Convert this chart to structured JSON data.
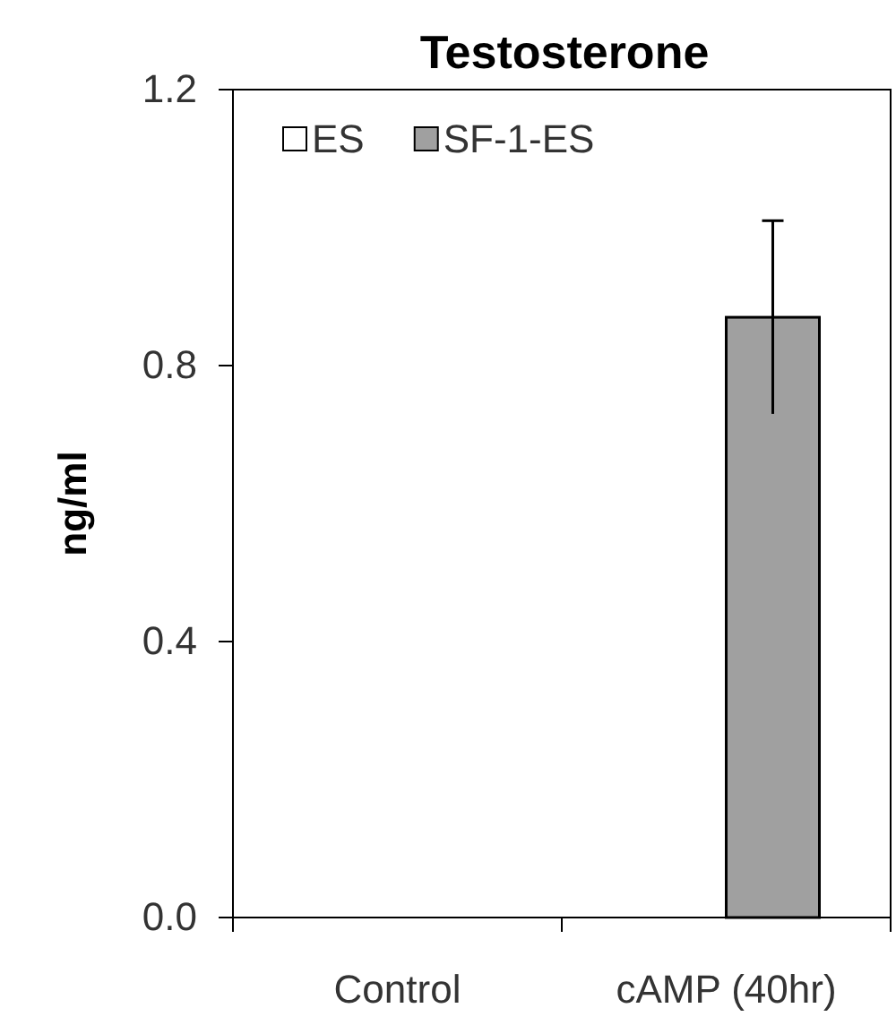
{
  "chart_data": {
    "type": "bar",
    "title": "Testosterone",
    "ylabel": "ng/ml",
    "categories": [
      "Control",
      "cAMP (40hr)"
    ],
    "series": [
      {
        "name": "ES",
        "color": "#ffffff",
        "values": [
          null,
          null
        ]
      },
      {
        "name": "SF-1-ES",
        "color": "#a0a0a0",
        "values": [
          null,
          0.87
        ],
        "errors": [
          null,
          0.14
        ]
      }
    ],
    "ylim": [
      0,
      1.2
    ],
    "yticks": [
      {
        "value": 0,
        "label": "0.0"
      },
      {
        "value": 0.4,
        "label": "0.4"
      },
      {
        "value": 0.8,
        "label": "0.8"
      },
      {
        "value": 1.2,
        "label": "1.2"
      }
    ],
    "legend": "top left",
    "grid": false
  }
}
